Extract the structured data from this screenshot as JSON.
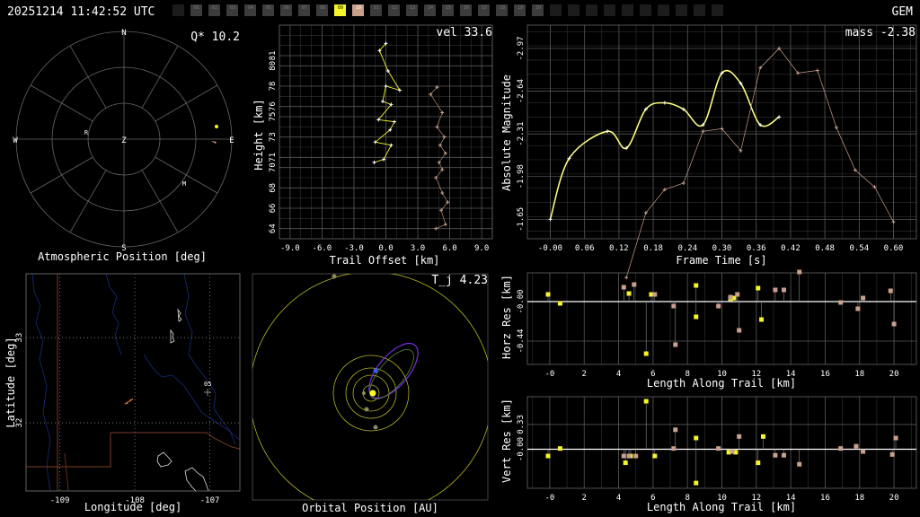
{
  "header": {
    "timestamp": "20251214 11:42:52 UTC",
    "shower_code": "GEM",
    "station_slots": [
      "",
      "01",
      "02",
      "03",
      "04",
      "05",
      "06",
      "07",
      "08",
      "09",
      "10",
      "11",
      "12",
      "13",
      "14",
      "15",
      "16",
      "17",
      "18",
      "19",
      "20",
      "",
      "",
      "",
      "",
      "",
      "",
      "",
      "",
      "",
      ""
    ],
    "active_slots": [
      "09"
    ],
    "highlight_slots": [
      "10"
    ],
    "colors": {
      "active": "#f5f52a",
      "highlight": "#c8a08c",
      "inactive": "#3c3c3c",
      "empty": "#1c1c1c"
    }
  },
  "panels": {
    "atmospheric": {
      "title": "Atmospheric Position [deg]",
      "quality_label": "Q* 10.2",
      "compass": {
        "n": "N",
        "s": "S",
        "e": "E",
        "w": "W",
        "z": "Z"
      },
      "markers": [
        {
          "label": "R"
        },
        {
          "label": "M"
        }
      ]
    },
    "trail": {
      "xlabel": "Trail Offset [km]",
      "ylabel": "Height [km]",
      "value_label": "vel 33.6"
    },
    "magnitude": {
      "xlabel": "Frame Time [s]",
      "ylabel": "Absolute Magnitude",
      "value_label": "mass -2.38"
    },
    "map": {
      "xlabel": "Longitude [deg]",
      "ylabel": "Latitude [deg]",
      "station_label": "05"
    },
    "orbit": {
      "xlabel": "Orbital Position [AU]",
      "value_label": "T_j 4.23"
    },
    "horz": {
      "xlabel": "Length Along Trail [km]",
      "ylabel": "Horz Res [km]"
    },
    "vert": {
      "xlabel": "Length Along Trail [km]",
      "ylabel": "Vert Res [km]"
    }
  },
  "chart_data": [
    {
      "type": "scatter",
      "id": "atmospheric",
      "title": "Atmospheric Position [deg]",
      "series": [
        {
          "name": "",
          "color": "#f5f52a",
          "values": [
            [
              0.86,
              0.12
            ]
          ]
        },
        {
          "name": "",
          "color": "#c8a08c",
          "values": [
            [
              0.83,
              -0.02
            ]
          ]
        }
      ]
    },
    {
      "type": "line",
      "id": "trail",
      "xlabel": "Trail Offset [km]",
      "ylabel": "Height [km]",
      "xlim": [
        -10,
        10
      ],
      "ylim": [
        63,
        84
      ],
      "xticks": [
        "-9.0",
        "-6.0",
        "-3.0",
        "0.0",
        "3.0",
        "6.0",
        "9.0"
      ],
      "xtick_values": [
        -9,
        -6,
        -3,
        0,
        3,
        6,
        9
      ],
      "yticks": [
        "64",
        "66",
        "68",
        "70",
        "71",
        "73",
        "75",
        "76",
        "78",
        "80",
        "81"
      ],
      "ytick_values": [
        64,
        66,
        68,
        70,
        71,
        73,
        75,
        76,
        78,
        80,
        81
      ],
      "series": [
        {
          "name": "",
          "color": "#f5f52a",
          "points": [
            [
              0.0,
              82.2
            ],
            [
              -0.6,
              81.5
            ],
            [
              0.2,
              79.5
            ],
            [
              1.3,
              77.6
            ],
            [
              0.0,
              78.0
            ],
            [
              -0.3,
              76.5
            ],
            [
              0.5,
              76.2
            ],
            [
              -0.7,
              74.7
            ],
            [
              0.8,
              74.5
            ],
            [
              0.4,
              73.7
            ],
            [
              -1.0,
              72.5
            ],
            [
              0.5,
              72.2
            ],
            [
              -0.2,
              70.8
            ],
            [
              -1.1,
              70.5
            ]
          ]
        },
        {
          "name": "",
          "color": "#c8a08c",
          "points": [
            [
              4.8,
              77.9
            ],
            [
              4.2,
              77.2
            ],
            [
              5.3,
              75.4
            ],
            [
              4.8,
              74.0
            ],
            [
              5.5,
              73.0
            ],
            [
              5.1,
              72.2
            ],
            [
              5.6,
              71.4
            ],
            [
              5.0,
              70.5
            ],
            [
              5.3,
              69.8
            ],
            [
              4.7,
              69.0
            ],
            [
              5.3,
              67.5
            ],
            [
              5.8,
              66.6
            ],
            [
              5.2,
              65.8
            ],
            [
              5.6,
              64.4
            ],
            [
              4.7,
              64.0
            ]
          ]
        }
      ]
    },
    {
      "type": "line",
      "id": "magnitude",
      "xlabel": "Frame Time [s]",
      "ylabel": "Absolute Magnitude",
      "xlim": [
        -0.04,
        0.64
      ],
      "ylim": [
        -1.5,
        -3.15
      ],
      "xticks": [
        "-0.00",
        "0.06",
        "0.12",
        "0.18",
        "0.24",
        "0.30",
        "0.36",
        "0.42",
        "0.48",
        "0.54",
        "0.60"
      ],
      "xtick_values": [
        0,
        0.06,
        0.12,
        0.18,
        0.24,
        0.3,
        0.36,
        0.42,
        0.48,
        0.54,
        0.6
      ],
      "yticks": [
        "-1.65",
        "-1.98",
        "-2.31",
        "-2.64",
        "-2.97"
      ],
      "ytick_values": [
        -1.65,
        -1.98,
        -2.31,
        -2.64,
        -2.97
      ],
      "series": [
        {
          "name": "",
          "color": "#f5f52a",
          "points": [
            [
              0.0,
              -1.65
            ],
            [
              0.033,
              -2.12
            ],
            [
              0.1,
              -2.33
            ],
            [
              0.133,
              -2.2
            ],
            [
              0.167,
              -2.5
            ],
            [
              0.2,
              -2.55
            ],
            [
              0.233,
              -2.5
            ],
            [
              0.267,
              -2.38
            ],
            [
              0.3,
              -2.78
            ],
            [
              0.333,
              -2.7
            ],
            [
              0.367,
              -2.38
            ],
            [
              0.4,
              -2.44
            ]
          ]
        },
        {
          "name": "",
          "color": "#c8a08c",
          "points": [
            [
              0.133,
              -1.2
            ],
            [
              0.167,
              -1.7
            ],
            [
              0.2,
              -1.88
            ],
            [
              0.233,
              -1.93
            ],
            [
              0.267,
              -2.33
            ],
            [
              0.3,
              -2.35
            ],
            [
              0.333,
              -2.18
            ],
            [
              0.367,
              -2.82
            ],
            [
              0.4,
              -2.97
            ],
            [
              0.433,
              -2.78
            ],
            [
              0.467,
              -2.8
            ],
            [
              0.5,
              -2.36
            ],
            [
              0.533,
              -2.03
            ],
            [
              0.567,
              -1.9
            ],
            [
              0.6,
              -1.63
            ]
          ]
        }
      ]
    },
    {
      "type": "scatter",
      "id": "map",
      "xlabel": "Longitude [deg]",
      "ylabel": "Latitude [deg]",
      "xlim": [
        -109.45,
        -106.6
      ],
      "ylim": [
        31.2,
        33.75
      ],
      "xticks": [
        "-109",
        "-108",
        "-107"
      ],
      "xtick_values": [
        -109,
        -108,
        -107
      ],
      "yticks": [
        "32",
        "33"
      ],
      "ytick_values": [
        32,
        33
      ],
      "series": [
        {
          "name": "",
          "color": "#ff8844",
          "points": [
            [
              -108.1,
              32.23
            ],
            [
              -108.06,
              32.27
            ]
          ]
        }
      ]
    },
    {
      "type": "scatter",
      "id": "orbit",
      "xlabel": "Orbital Position [AU]"
    },
    {
      "type": "scatter",
      "id": "horz",
      "xlabel": "Length Along Trail [km]",
      "ylabel": "Horz Res [km]",
      "xlim": [
        -1.3,
        21.3
      ],
      "ylim": [
        -0.7,
        0.32
      ],
      "xticks": [
        "-0",
        "2",
        "4",
        "6",
        "8",
        "10",
        "12",
        "14",
        "16",
        "18",
        "20"
      ],
      "xtick_values": [
        0,
        2,
        4,
        6,
        8,
        10,
        12,
        14,
        16,
        18,
        20
      ],
      "yticks": [
        "-0.44",
        "-0.00"
      ],
      "ytick_values": [
        -0.44,
        0.0
      ],
      "series": [
        {
          "name": "",
          "color": "#f5f52a",
          "points": [
            [
              -0.1,
              0.08
            ],
            [
              0.6,
              -0.02
            ],
            [
              4.6,
              0.09
            ],
            [
              5.6,
              -0.58
            ],
            [
              5.9,
              0.08
            ],
            [
              8.5,
              -0.17
            ],
            [
              8.5,
              0.18
            ],
            [
              10.5,
              0.03
            ],
            [
              10.7,
              0.04
            ],
            [
              12.1,
              0.15
            ],
            [
              12.3,
              -0.2
            ]
          ]
        },
        {
          "name": "",
          "color": "#c8a08c",
          "points": [
            [
              4.3,
              0.16
            ],
            [
              4.9,
              0.19
            ],
            [
              6.1,
              0.08
            ],
            [
              7.2,
              -0.05
            ],
            [
              7.3,
              -0.48
            ],
            [
              9.8,
              -0.05
            ],
            [
              10.5,
              0.05
            ],
            [
              10.9,
              0.08
            ],
            [
              11.0,
              -0.32
            ],
            [
              13.1,
              0.13
            ],
            [
              13.6,
              0.13
            ],
            [
              14.5,
              0.33
            ],
            [
              16.9,
              -0.01
            ],
            [
              17.9,
              -0.08
            ],
            [
              18.2,
              0.04
            ],
            [
              19.8,
              0.12
            ],
            [
              20.0,
              -0.25
            ]
          ]
        }
      ]
    },
    {
      "type": "scatter",
      "id": "vert",
      "xlabel": "Length Along Trail [km]",
      "ylabel": "Vert Res [km]",
      "xlim": [
        -1.3,
        21.3
      ],
      "ylim": [
        -0.52,
        0.7
      ],
      "xticks": [
        "-0",
        "2",
        "4",
        "6",
        "8",
        "10",
        "12",
        "14",
        "16",
        "18",
        "20"
      ],
      "xtick_values": [
        0,
        2,
        4,
        6,
        8,
        10,
        12,
        14,
        16,
        18,
        20
      ],
      "yticks": [
        "-0.00",
        "0.33"
      ],
      "ytick_values": [
        0.0,
        0.33
      ],
      "series": [
        {
          "name": "",
          "color": "#f5f52a",
          "points": [
            [
              -0.1,
              -0.09
            ],
            [
              0.6,
              0.01
            ],
            [
              4.4,
              -0.18
            ],
            [
              4.7,
              -0.09
            ],
            [
              5.6,
              0.64
            ],
            [
              6.1,
              -0.09
            ],
            [
              8.5,
              -0.45
            ],
            [
              8.5,
              0.15
            ],
            [
              10.4,
              -0.04
            ],
            [
              10.8,
              -0.04
            ],
            [
              12.1,
              -0.18
            ],
            [
              12.4,
              0.17
            ]
          ]
        },
        {
          "name": "",
          "color": "#c8a08c",
          "points": [
            [
              4.3,
              -0.09
            ],
            [
              4.6,
              -0.09
            ],
            [
              5.0,
              -0.09
            ],
            [
              7.2,
              0.01
            ],
            [
              7.3,
              0.26
            ],
            [
              9.8,
              0.01
            ],
            [
              10.6,
              -0.03
            ],
            [
              11.0,
              0.17
            ],
            [
              13.1,
              -0.08
            ],
            [
              13.6,
              -0.08
            ],
            [
              14.5,
              -0.2
            ],
            [
              16.9,
              0.01
            ],
            [
              17.8,
              0.04
            ],
            [
              18.2,
              -0.03
            ],
            [
              19.9,
              -0.07
            ],
            [
              20.1,
              0.15
            ]
          ]
        }
      ]
    }
  ]
}
